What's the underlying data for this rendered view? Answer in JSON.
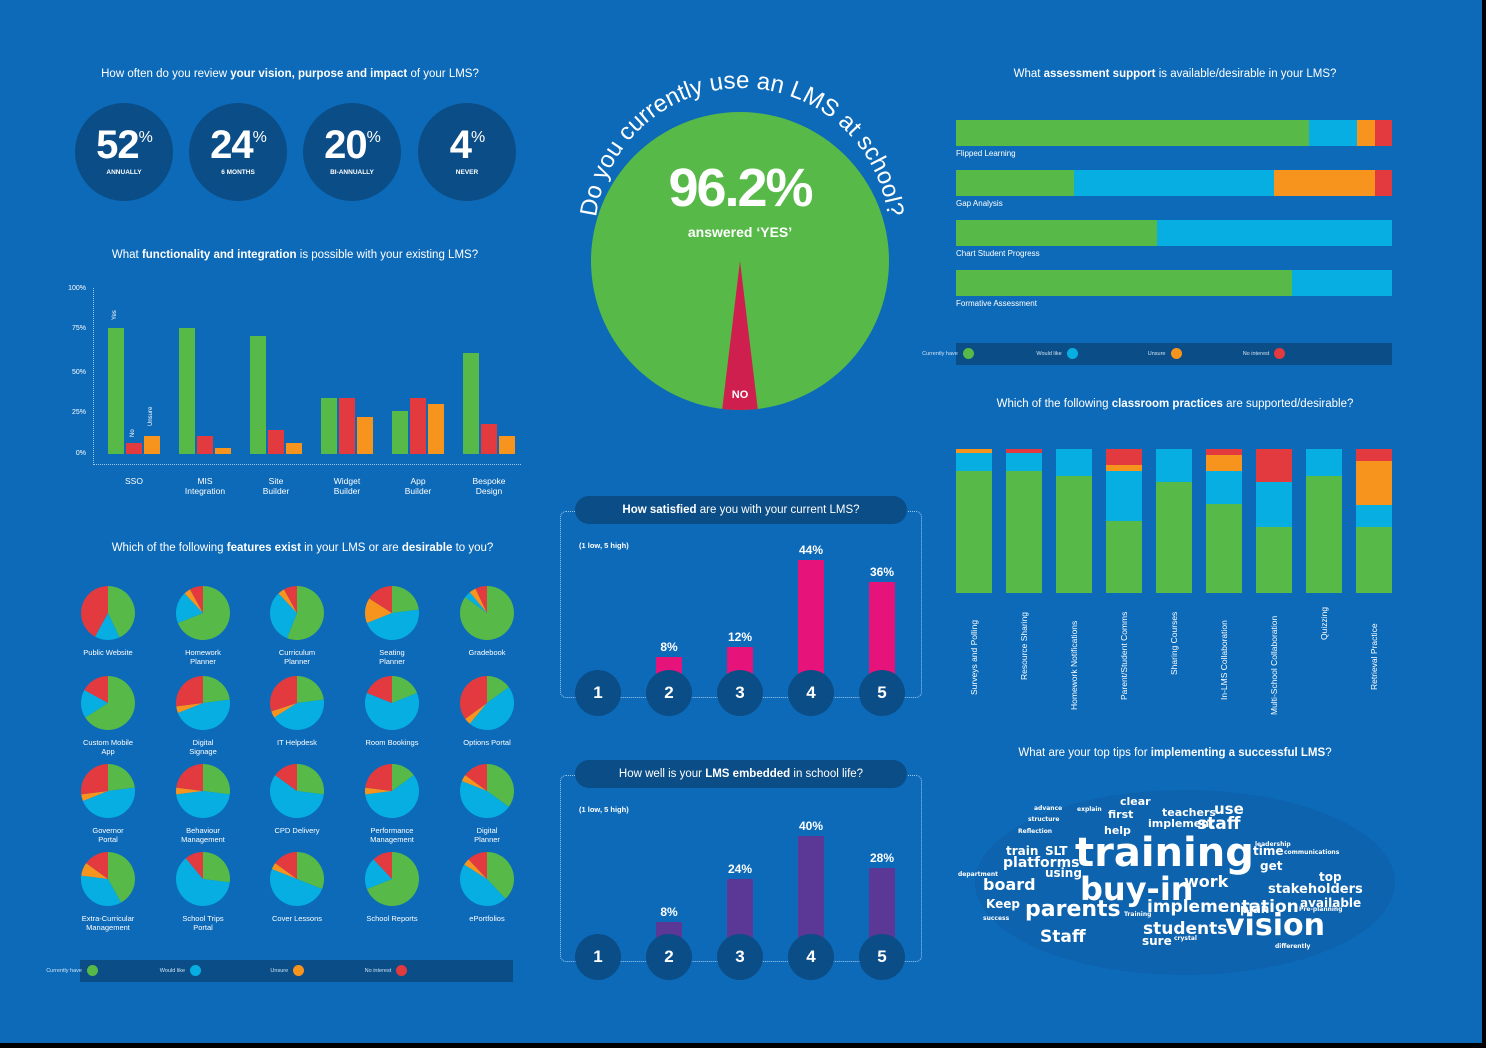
{
  "colors": {
    "bg": "#0d6ab8",
    "dark": "#0b4d86",
    "green": "#57b947",
    "blue": "#07aee2",
    "orange": "#f7941e",
    "red": "#e23a3e",
    "magenta": "#e6147a",
    "purple": "#5b3796",
    "yes": "#ce1f4e"
  },
  "vision": {
    "title_pre": "How often do you review ",
    "title_bold": "your vision, purpose and impact",
    "title_post": " of your LMS?",
    "stats": [
      {
        "value": "52",
        "unit": "%",
        "label": "ANNUALLY"
      },
      {
        "value": "24",
        "unit": "%",
        "label": "6 MONTHS"
      },
      {
        "value": "20",
        "unit": "%",
        "label": "BI-ANNUALLY"
      },
      {
        "value": "4",
        "unit": "%",
        "label": "NEVER"
      }
    ]
  },
  "lms_use": {
    "title": "Do you currently use an LMS at school?",
    "value": "96.2%",
    "sub": "answered ‘YES’",
    "no_label": "NO",
    "yes_pct": 96.2
  },
  "satisfied": {
    "title_pre": "How satisfied",
    "title_post": " are you with your current LMS?",
    "scale_note": "(1 low, 5 high)"
  },
  "embedded": {
    "title_pre": "How well is your ",
    "title_bold": "LMS embedded",
    "title_post": " in school life?",
    "scale_note": "(1 low, 5 high)"
  },
  "functionality": {
    "title_pre": "What ",
    "title_bold": "functionality and integration",
    "title_post": " is possible with your existing LMS?"
  },
  "features": {
    "title_pre": "Which of the following ",
    "title_bold1": "features exist",
    "title_mid": " in your LMS or are ",
    "title_bold2": "desirable",
    "title_post": " to you?"
  },
  "assessment": {
    "title_pre": "What ",
    "title_bold": "assessment support",
    "title_post": " is available/desirable in your LMS?"
  },
  "practices": {
    "title_pre": "Which of the following ",
    "title_bold": "classroom practices",
    "title_post": " are supported/desirable?"
  },
  "tips": {
    "title_pre": "What are your top tips for ",
    "title_bold": "implementing a successful LMS",
    "title_post": "?"
  },
  "legend": {
    "have": "Currently have",
    "like": "Would like",
    "unsure": "Unsure",
    "no": "No interest"
  },
  "chart_data": [
    {
      "id": "functionality",
      "type": "bar",
      "categories": [
        "SSO",
        "MIS Integration",
        "Site Builder",
        "Widget Builder",
        "App Builder",
        "Bespoke Design"
      ],
      "series": [
        {
          "name": "Yes",
          "values": [
            79,
            79,
            74,
            35,
            27,
            63
          ]
        },
        {
          "name": "No",
          "values": [
            7,
            11,
            15,
            35,
            35,
            19
          ]
        },
        {
          "name": "Unsure",
          "values": [
            11,
            4,
            7,
            23,
            31,
            11
          ]
        }
      ],
      "ylim": [
        0,
        100
      ],
      "yticks": [
        "100%",
        "75%",
        "50%",
        "25%",
        "0%"
      ]
    },
    {
      "id": "satisfied",
      "type": "bar",
      "categories": [
        "1",
        "2",
        "3",
        "4",
        "5"
      ],
      "values": [
        0,
        8,
        12,
        44,
        36
      ],
      "labels": [
        "",
        "8%",
        "12%",
        "44%",
        "36%"
      ]
    },
    {
      "id": "embedded",
      "type": "bar",
      "categories": [
        "1",
        "2",
        "3",
        "4",
        "5"
      ],
      "values": [
        0,
        8,
        24,
        40,
        28
      ],
      "labels": [
        "",
        "8%",
        "24%",
        "40%",
        "28%"
      ]
    },
    {
      "id": "assessment",
      "type": "bar",
      "orientation": "horizontal",
      "stacked": true,
      "categories": [
        "Flipped Learning",
        "Gap Analysis",
        "Chart Student Progress",
        "Formative Assessment"
      ],
      "series": [
        {
          "name": "Currently have",
          "values": [
            81,
            27,
            46,
            77
          ]
        },
        {
          "name": "Would like",
          "values": [
            11,
            46,
            54,
            23
          ]
        },
        {
          "name": "Unsure",
          "values": [
            4,
            23,
            0,
            0
          ]
        },
        {
          "name": "No interest",
          "values": [
            4,
            4,
            0,
            0
          ]
        }
      ]
    },
    {
      "id": "practices",
      "type": "bar",
      "stacked": true,
      "categories": [
        "Surveys and Polling",
        "Resource Sharing",
        "Homework Notifications",
        "Parent/Student Comms",
        "Sharing Courses",
        "In-LMS Collaboration",
        "Multi-School Collaboration",
        "Quizzing",
        "Retrieval Practice"
      ],
      "series": [
        {
          "name": "Currently have",
          "values": [
            85,
            85,
            81,
            50,
            77,
            62,
            46,
            81,
            46
          ]
        },
        {
          "name": "Would like",
          "values": [
            12,
            12,
            19,
            35,
            23,
            23,
            31,
            19,
            15
          ]
        },
        {
          "name": "Unsure",
          "values": [
            3,
            0,
            0,
            4,
            0,
            11,
            0,
            0,
            31
          ]
        },
        {
          "name": "No interest",
          "values": [
            0,
            3,
            0,
            11,
            0,
            4,
            23,
            0,
            8
          ]
        }
      ]
    },
    {
      "id": "features",
      "type": "pie",
      "order": [
        "Currently have",
        "Would like",
        "Unsure",
        "No interest"
      ],
      "items": [
        {
          "label": "Public Website",
          "values": [
            43,
            15,
            0,
            42
          ]
        },
        {
          "label": "Homework Planner",
          "values": [
            69,
            19,
            4,
            8
          ]
        },
        {
          "label": "Curriculum Planner",
          "values": [
            56,
            32,
            4,
            8
          ]
        },
        {
          "label": "Seating Planner",
          "values": [
            23,
            46,
            15,
            16
          ]
        },
        {
          "label": "Gradebook",
          "values": [
            85,
            4,
            4,
            7
          ]
        },
        {
          "label": "Custom Mobile App",
          "values": [
            66,
            17,
            0,
            17
          ]
        },
        {
          "label": "Digital Signage",
          "values": [
            23,
            46,
            4,
            27
          ]
        },
        {
          "label": "IT Helpdesk",
          "values": [
            23,
            43,
            4,
            30
          ]
        },
        {
          "label": "Room Bookings",
          "values": [
            19,
            62,
            0,
            19
          ]
        },
        {
          "label": "Options Portal",
          "values": [
            15,
            46,
            4,
            35
          ]
        },
        {
          "label": "Governor Portal",
          "values": [
            23,
            46,
            4,
            27
          ]
        },
        {
          "label": "Behaviour Management",
          "values": [
            27,
            46,
            4,
            23
          ]
        },
        {
          "label": "CPD Delivery",
          "values": [
            27,
            58,
            0,
            15
          ]
        },
        {
          "label": "Performance Management",
          "values": [
            15,
            58,
            4,
            23
          ]
        },
        {
          "label": "Digital Planner",
          "values": [
            35,
            46,
            4,
            15
          ]
        },
        {
          "label": "Extra-Curricular Management",
          "values": [
            42,
            35,
            8,
            15
          ]
        },
        {
          "label": "School Trips Portal",
          "values": [
            27,
            62,
            0,
            11
          ]
        },
        {
          "label": "Cover Lessons",
          "values": [
            31,
            50,
            4,
            15
          ]
        },
        {
          "label": "School Reports",
          "values": [
            69,
            19,
            0,
            12
          ]
        },
        {
          "label": "ePortfolios",
          "values": [
            38,
            46,
            4,
            12
          ]
        }
      ]
    }
  ],
  "words": [
    {
      "t": "training",
      "s": 40
    },
    {
      "t": "buy-in",
      "s": 32
    },
    {
      "t": "vision",
      "s": 30
    },
    {
      "t": "parents",
      "s": 22
    },
    {
      "t": "implementation",
      "s": 17
    },
    {
      "t": "students",
      "s": 17
    },
    {
      "t": "staff",
      "s": 17
    },
    {
      "t": "Staff",
      "s": 17
    },
    {
      "t": "board",
      "s": 16
    },
    {
      "t": "work",
      "s": 16
    },
    {
      "t": "platforms",
      "s": 14
    },
    {
      "t": "stakeholders",
      "s": 13
    },
    {
      "t": "use",
      "s": 15
    },
    {
      "t": "clear",
      "s": 11
    },
    {
      "t": "implement",
      "s": 11
    },
    {
      "t": "teachers",
      "s": 11
    },
    {
      "t": "help",
      "s": 11
    },
    {
      "t": "first",
      "s": 11
    },
    {
      "t": "SLT",
      "s": 12
    },
    {
      "t": "train",
      "s": 12
    },
    {
      "t": "using",
      "s": 12
    },
    {
      "t": "Keep",
      "s": 12
    },
    {
      "t": "time",
      "s": 12
    },
    {
      "t": "get",
      "s": 12
    },
    {
      "t": "plan",
      "s": 12
    },
    {
      "t": "top",
      "s": 12
    },
    {
      "t": "available",
      "s": 12
    },
    {
      "t": "sure",
      "s": 12
    },
    {
      "t": "Reflection",
      "s": 6
    },
    {
      "t": "advance",
      "s": 6
    },
    {
      "t": "explain",
      "s": 6
    },
    {
      "t": "leadership",
      "s": 6
    },
    {
      "t": "communications",
      "s": 6
    },
    {
      "t": "Pre-planning",
      "s": 6
    },
    {
      "t": "Training",
      "s": 6
    },
    {
      "t": "crystal",
      "s": 6
    },
    {
      "t": "differently",
      "s": 6
    },
    {
      "t": "success",
      "s": 6
    },
    {
      "t": "department",
      "s": 6
    },
    {
      "t": "structure",
      "s": 6
    }
  ]
}
